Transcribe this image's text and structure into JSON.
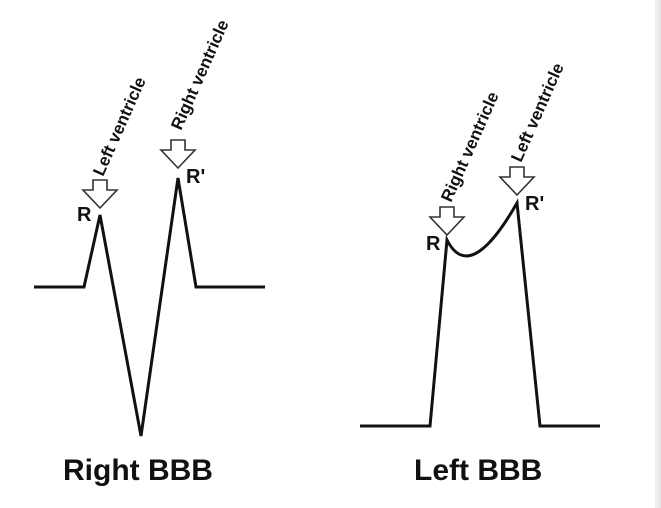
{
  "right_bbb": {
    "caption": "Right BBB",
    "label_r": "R",
    "label_r_prime": "R'",
    "arrow_first": "Left ventricle",
    "arrow_second": "Right ventricle"
  },
  "left_bbb": {
    "caption": "Left BBB",
    "label_r": "R",
    "label_r_prime": "R'",
    "arrow_first": "Right ventricle",
    "arrow_second": "Left ventricle"
  }
}
